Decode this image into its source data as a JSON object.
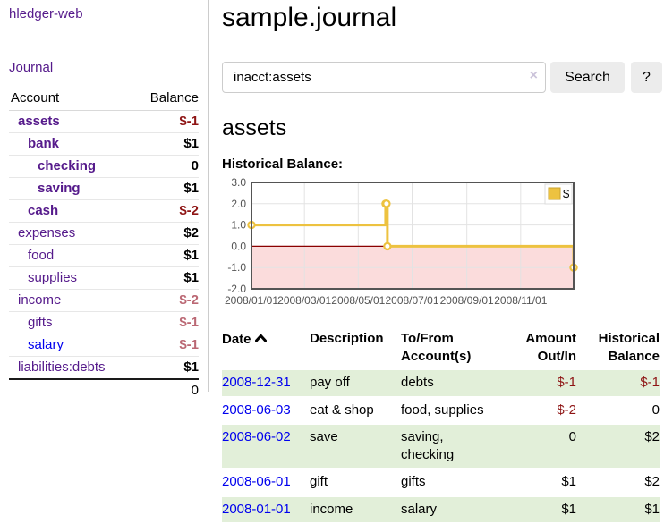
{
  "app": {
    "title": "hledger-web",
    "nav_journal": "Journal"
  },
  "sidebar": {
    "account_header": "Account",
    "balance_header": "Balance",
    "accounts": [
      {
        "name": "assets",
        "balance": "$-1",
        "depth": 1,
        "bold": true,
        "neg_strong": true
      },
      {
        "name": "bank",
        "balance": "$1",
        "depth": 2,
        "bold": true
      },
      {
        "name": "checking",
        "balance": "0",
        "depth": 3,
        "bold": true
      },
      {
        "name": "saving",
        "balance": "$1",
        "depth": 3,
        "bold": true
      },
      {
        "name": "cash",
        "balance": "$-2",
        "depth": 2,
        "bold": true,
        "neg_strong": true
      },
      {
        "name": "expenses",
        "balance": "$2",
        "depth": 1
      },
      {
        "name": "food",
        "balance": "$1",
        "depth": 2
      },
      {
        "name": "supplies",
        "balance": "$1",
        "depth": 2
      },
      {
        "name": "income",
        "balance": "$-2",
        "depth": 1,
        "neg_soft": true
      },
      {
        "name": "gifts",
        "balance": "$-1",
        "depth": 2,
        "neg_soft": true
      },
      {
        "name": "salary",
        "balance": "$-1",
        "depth": 2,
        "neg_soft": true,
        "unvisited": true
      },
      {
        "name": "liabilities:debts",
        "balance": "$1",
        "depth": 1
      }
    ],
    "total": "0"
  },
  "header": {
    "title": "sample.journal"
  },
  "search": {
    "value": "inacct:assets",
    "clear_icon": "×",
    "button_label": "Search",
    "help_label": "?"
  },
  "account_page": {
    "title": "assets",
    "chart_label": "Historical Balance:"
  },
  "chart_data": {
    "type": "line",
    "step": true,
    "title": "Historical Balance:",
    "legend_position": "top-right",
    "series": [
      {
        "name": "$",
        "color": "#edc240",
        "points": [
          {
            "date": "2008-01-01",
            "day": 0,
            "value": 1
          },
          {
            "date": "2008-06-01",
            "day": 152,
            "value": 2
          },
          {
            "date": "2008-06-02",
            "day": 153,
            "value": 2
          },
          {
            "date": "2008-06-03",
            "day": 154,
            "value": 0
          },
          {
            "date": "2008-12-31",
            "day": 365,
            "value": -1
          }
        ]
      }
    ],
    "x_ticks": [
      {
        "label": "2008/01/01",
        "day": 0
      },
      {
        "label": "2008/03/01",
        "day": 60
      },
      {
        "label": "2008/05/01",
        "day": 121
      },
      {
        "label": "2008/07/01",
        "day": 182
      },
      {
        "label": "2008/09/01",
        "day": 244
      },
      {
        "label": "2008/11/01",
        "day": 305
      }
    ],
    "y_ticks": [
      {
        "label": "3.0",
        "value": 3
      },
      {
        "label": "2.0",
        "value": 2
      },
      {
        "label": "1.0",
        "value": 1
      },
      {
        "label": "0.0",
        "value": 0
      },
      {
        "label": "-1.0",
        "value": -1
      },
      {
        "label": "-2.0",
        "value": -2
      }
    ],
    "ylim": [
      -2,
      3
    ],
    "xlim_days": [
      0,
      365
    ],
    "grid": true,
    "colors": {
      "line": "#edc240",
      "marker_fill": "#ffffff",
      "negative_region": "#fbdcdc",
      "zero_line": "#8b0000",
      "gridline": "#e3e3e3",
      "plot_border": "#545454",
      "tick_text": "#545454"
    }
  },
  "register": {
    "columns": {
      "date": "Date",
      "description": "Description",
      "accounts": "To/From Account(s)",
      "amount": "Amount Out/In",
      "balance": "Historical Balance"
    },
    "rows": [
      {
        "date": "2008-12-31",
        "description": "pay off",
        "accounts": "debts",
        "amount": "$-1",
        "balance": "$-1",
        "amount_neg": true,
        "balance_neg": true,
        "highlight": true
      },
      {
        "date": "2008-06-03",
        "description": "eat & shop",
        "accounts": "food, supplies",
        "amount": "$-2",
        "balance": "0",
        "amount_neg": true
      },
      {
        "date": "2008-06-02",
        "description": "save",
        "accounts": "saving,\nchecking",
        "amount": "0",
        "balance": "$2",
        "highlight": true
      },
      {
        "date": "2008-06-01",
        "description": "gift",
        "accounts": "gifts",
        "amount": "$1",
        "balance": "$2"
      },
      {
        "date": "2008-01-01",
        "description": "income",
        "accounts": "salary",
        "amount": "$1",
        "balance": "$1",
        "highlight": true
      }
    ]
  }
}
